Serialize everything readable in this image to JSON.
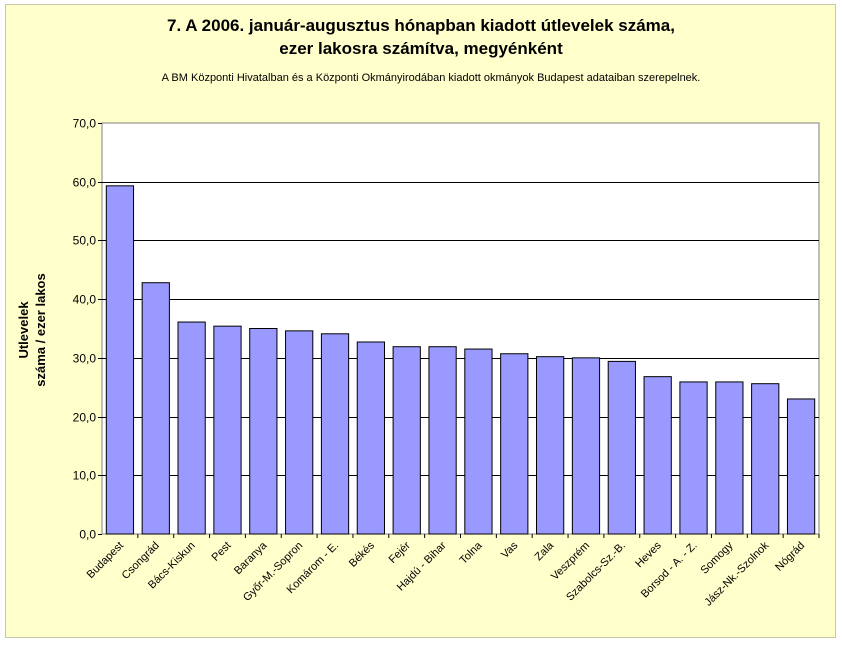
{
  "chart_data": {
    "type": "bar",
    "title_lines": [
      "7. A 2006. január-augusztus hónapban kiadott útlevelek száma,",
      "ezer lakosra számítva, megyénként"
    ],
    "subtitle": "A BM Központi Hivatalban és a Központi Okmányirodában kiadott okmányok Budapest adataiban szerepelnek.",
    "ylabel_lines": [
      "Utlevelek",
      "száma / ezer lakos"
    ],
    "xlabel": "",
    "ylim": [
      0,
      70
    ],
    "yticks": [
      "0,0",
      "10,0",
      "20,0",
      "30,0",
      "40,0",
      "50,0",
      "60,0",
      "70,0"
    ],
    "grid": true,
    "bar_color": "#9999ff",
    "categories": [
      "Budapest",
      "Csongrád",
      "Bács-Kiskun",
      "Pest",
      "Baranya",
      "Győr-M.-Sopron",
      "Komárom - E.",
      "Békés",
      "Fejér",
      "Hajdú - Bihar",
      "Tolna",
      "Vas",
      "Zala",
      "Veszprém",
      "Szabolcs-Sz.-B.",
      "Heves",
      "Borsod - A. - Z.",
      "Somogy",
      "Jász-Nk.-Szolnok",
      "Nógrád"
    ],
    "values": [
      59.3,
      42.8,
      36.1,
      35.4,
      35.0,
      34.6,
      34.1,
      32.7,
      31.9,
      31.9,
      31.5,
      30.7,
      30.2,
      30.0,
      29.4,
      26.8,
      25.9,
      25.9,
      25.6,
      23.0
    ]
  }
}
